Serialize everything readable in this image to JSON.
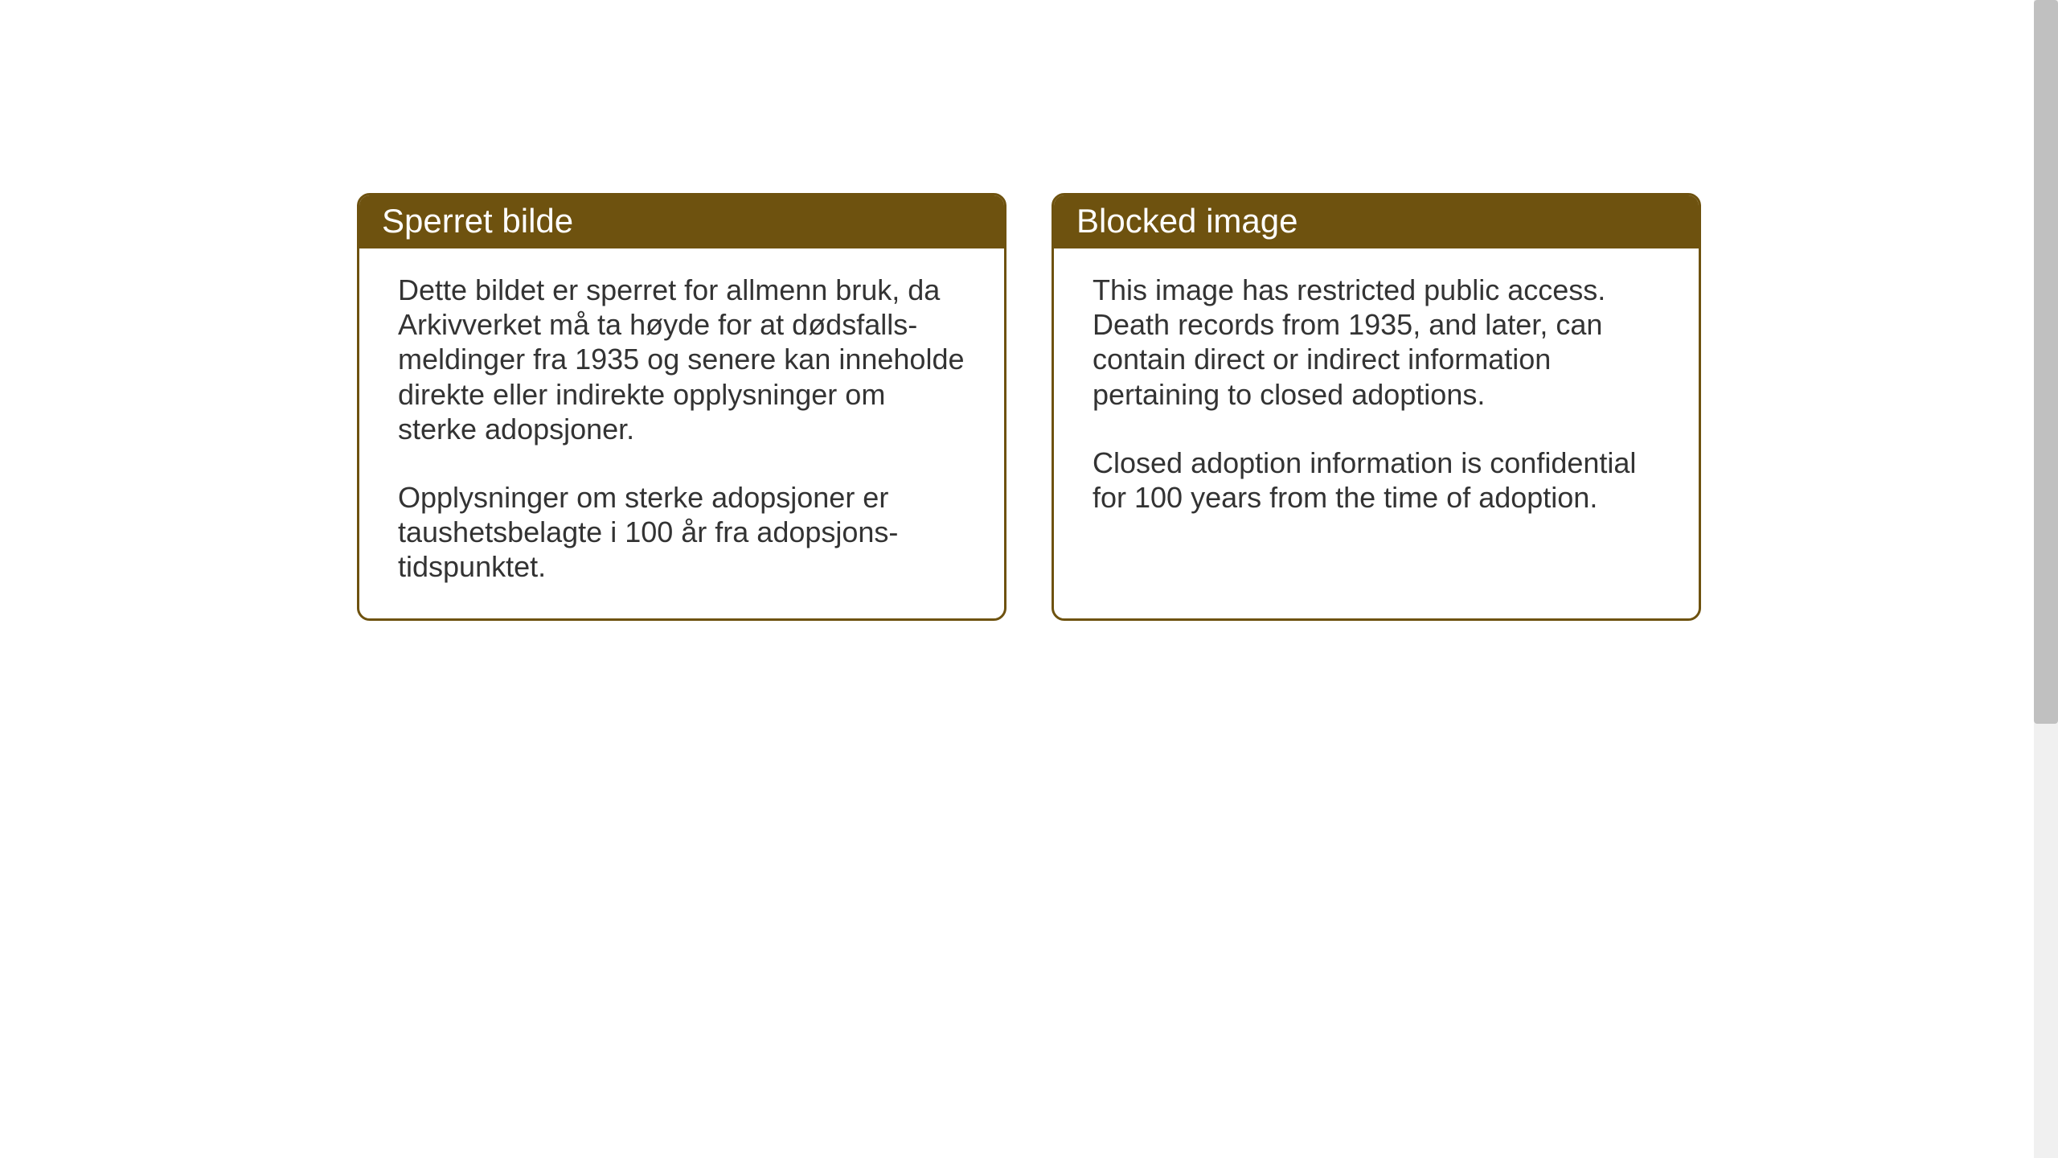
{
  "cards": {
    "norwegian": {
      "title": "Sperret bilde",
      "paragraph1": "Dette bildet er sperret for allmenn bruk, da Arkivverket må ta høyde for at dødsfalls-meldinger fra 1935 og senere kan inneholde direkte eller indirekte opplysninger om sterke adopsjoner.",
      "paragraph2": "Opplysninger om sterke adopsjoner er taushetsbelagte i 100 år fra adopsjons-tidspunktet."
    },
    "english": {
      "title": "Blocked image",
      "paragraph1": "This image has restricted public access. Death records from 1935, and later, can contain direct or indirect information pertaining to closed adoptions.",
      "paragraph2": "Closed adoption information is confidential for 100 years from the time of adoption."
    }
  },
  "styling": {
    "header_bg_color": "#6e520f",
    "header_text_color": "#ffffff",
    "border_color": "#6e520f",
    "card_bg_color": "#ffffff",
    "body_text_color": "#333333",
    "page_bg_color": "#ffffff",
    "header_fontsize": 42,
    "body_fontsize": 36,
    "border_radius": 16,
    "border_width": 3
  }
}
